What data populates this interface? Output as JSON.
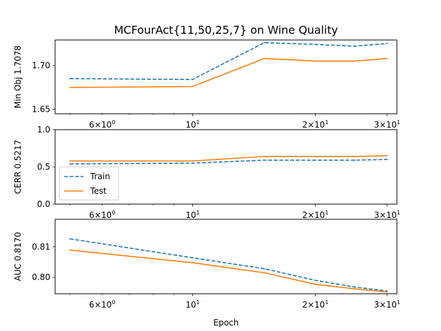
{
  "title": "MCFourAct{11,50,25,7} on Wine Quality",
  "xlabel": "Epoch",
  "legend": {
    "train": "Train",
    "test": "Test"
  },
  "colors": {
    "train": "#1f77b4",
    "test": "#ff7f0e"
  },
  "chart_data": [
    {
      "type": "line",
      "ylabel": "Min Obj 1.7078",
      "x_scale": "log",
      "xlim": [
        4.6,
        31.7
      ],
      "ylim": [
        1.645,
        1.729
      ],
      "yticks": [
        1.65,
        1.7
      ],
      "ytick_labels": [
        "1.65",
        "1.70"
      ],
      "x": [
        5,
        10,
        15,
        20,
        25,
        30
      ],
      "xtick_labels": [
        "6×10⁰",
        "10¹",
        "2×10¹",
        "3×10¹"
      ],
      "series": [
        {
          "name": "Train",
          "style": "dashed",
          "values": [
            1.685,
            1.684,
            1.726,
            1.724,
            1.722,
            1.725
          ]
        },
        {
          "name": "Test",
          "style": "solid",
          "values": [
            1.675,
            1.676,
            1.708,
            1.705,
            1.705,
            1.708
          ]
        }
      ]
    },
    {
      "type": "line",
      "ylabel": "CERR 0.5217",
      "x_scale": "log",
      "xlim": [
        4.6,
        31.7
      ],
      "ylim": [
        0,
        1
      ],
      "yticks": [
        0,
        0.5,
        1
      ],
      "ytick_labels": [
        "0.0",
        "0.5",
        "1.0"
      ],
      "x": [
        5,
        10,
        15,
        20,
        25,
        30
      ],
      "xtick_labels": [
        "6×10⁰",
        "10¹",
        "2×10¹",
        "3×10¹"
      ],
      "legend_position": "lower-left",
      "series": [
        {
          "name": "Train",
          "style": "dashed",
          "values": [
            0.54,
            0.55,
            0.59,
            0.59,
            0.59,
            0.6
          ]
        },
        {
          "name": "Test",
          "style": "solid",
          "values": [
            0.58,
            0.58,
            0.64,
            0.64,
            0.64,
            0.65
          ]
        }
      ]
    },
    {
      "type": "line",
      "ylabel": "AUC 0.8170",
      "x_scale": "log",
      "xlim": [
        4.6,
        31.7
      ],
      "ylim": [
        0.7946,
        0.819
      ],
      "yticks": [
        0.8,
        0.81
      ],
      "ytick_labels": [
        "0.80",
        "0.81"
      ],
      "x": [
        5,
        10,
        15,
        20,
        25,
        30
      ],
      "xtick_labels": [
        "6×10⁰",
        "10¹",
        "2×10¹",
        "3×10¹"
      ],
      "series": [
        {
          "name": "Train",
          "style": "dashed",
          "values": [
            0.8126,
            0.8064,
            0.8028,
            0.799,
            0.7968,
            0.7955
          ]
        },
        {
          "name": "Test",
          "style": "solid",
          "values": [
            0.8089,
            0.8048,
            0.8015,
            0.7977,
            0.7962,
            0.7952
          ]
        }
      ]
    }
  ]
}
